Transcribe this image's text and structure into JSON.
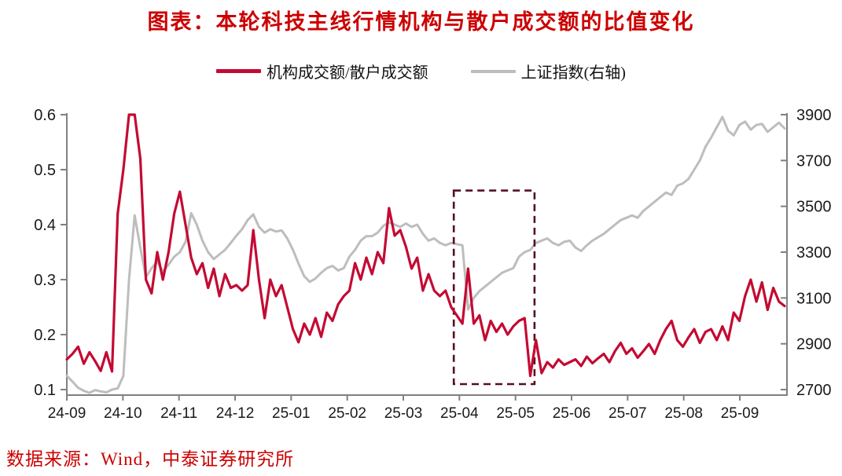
{
  "title": "图表：本轮科技主线行情机构与散户成交额的比值变化",
  "source": "数据来源：Wind，中泰证券研究所",
  "colors": {
    "text_red": "#CC0000",
    "ratio_line": "#C40A33",
    "index_line": "#BDBDBD",
    "highlight_box": "#551020",
    "axis": "#808080",
    "tick_text": "#1A1A1A"
  },
  "legend": [
    {
      "label": "机构成交额/散户成交额",
      "color": "#C40A33"
    },
    {
      "label": "上证指数(右轴)",
      "color": "#BDBDBD"
    }
  ],
  "chart_data": {
    "type": "line",
    "x_ticks": [
      "24-09",
      "24-10",
      "24-11",
      "24-12",
      "25-01",
      "25-02",
      "25-03",
      "25-04",
      "25-05",
      "25-06",
      "25-07",
      "25-08",
      "25-09"
    ],
    "yaxis_left": {
      "ticks": [
        "0.6",
        "0.5",
        "0.4",
        "0.3",
        "0.2",
        "0.1"
      ],
      "range": [
        0.1,
        0.6
      ]
    },
    "yaxis_right": {
      "ticks": [
        "3900",
        "3700",
        "3500",
        "3300",
        "3100",
        "2900",
        "2700"
      ],
      "range": [
        2700,
        3900
      ]
    },
    "grid": false,
    "legend_position": "top",
    "series": [
      {
        "name": "机构成交额/散户成交额",
        "axis": "left",
        "color": "#C40A33",
        "values": [
          0.155,
          0.165,
          0.178,
          0.147,
          0.168,
          0.152,
          0.134,
          0.168,
          0.133,
          0.42,
          0.5,
          0.6,
          0.6,
          0.52,
          0.3,
          0.275,
          0.35,
          0.3,
          0.35,
          0.42,
          0.46,
          0.4,
          0.34,
          0.31,
          0.33,
          0.285,
          0.32,
          0.27,
          0.31,
          0.285,
          0.29,
          0.28,
          0.29,
          0.39,
          0.3,
          0.23,
          0.3,
          0.27,
          0.29,
          0.25,
          0.21,
          0.186,
          0.22,
          0.2,
          0.23,
          0.196,
          0.24,
          0.225,
          0.255,
          0.27,
          0.28,
          0.33,
          0.3,
          0.34,
          0.31,
          0.35,
          0.33,
          0.43,
          0.38,
          0.39,
          0.36,
          0.32,
          0.34,
          0.28,
          0.31,
          0.28,
          0.27,
          0.28,
          0.25,
          0.235,
          0.22,
          0.32,
          0.22,
          0.235,
          0.19,
          0.225,
          0.205,
          0.22,
          0.2,
          0.215,
          0.225,
          0.23,
          0.125,
          0.19,
          0.13,
          0.15,
          0.14,
          0.155,
          0.145,
          0.15,
          0.155,
          0.143,
          0.16,
          0.148,
          0.157,
          0.165,
          0.15,
          0.17,
          0.185,
          0.165,
          0.175,
          0.158,
          0.17,
          0.183,
          0.165,
          0.19,
          0.21,
          0.225,
          0.19,
          0.178,
          0.195,
          0.21,
          0.185,
          0.205,
          0.21,
          0.19,
          0.215,
          0.19,
          0.24,
          0.225,
          0.27,
          0.3,
          0.26,
          0.295,
          0.245,
          0.285,
          0.26,
          0.252
        ]
      },
      {
        "name": "上证指数(右轴)",
        "axis": "right",
        "color": "#BDBDBD",
        "values": [
          2760,
          2735,
          2708,
          2695,
          2686,
          2698,
          2692,
          2688,
          2700,
          2705,
          2760,
          3180,
          3460,
          3320,
          3190,
          3230,
          3260,
          3215,
          3245,
          3280,
          3300,
          3345,
          3470,
          3420,
          3350,
          3300,
          3270,
          3290,
          3310,
          3340,
          3372,
          3400,
          3440,
          3465,
          3410,
          3385,
          3400,
          3390,
          3395,
          3360,
          3310,
          3250,
          3195,
          3170,
          3185,
          3210,
          3230,
          3240,
          3220,
          3230,
          3280,
          3310,
          3350,
          3370,
          3370,
          3385,
          3415,
          3430,
          3420,
          3410,
          3425,
          3410,
          3420,
          3380,
          3350,
          3360,
          3340,
          3330,
          3340,
          3335,
          3330,
          3050,
          3100,
          3130,
          3150,
          3170,
          3190,
          3210,
          3220,
          3230,
          3280,
          3300,
          3310,
          3340,
          3350,
          3360,
          3340,
          3330,
          3345,
          3350,
          3320,
          3305,
          3330,
          3350,
          3365,
          3380,
          3400,
          3420,
          3440,
          3450,
          3460,
          3450,
          3480,
          3500,
          3520,
          3540,
          3560,
          3550,
          3590,
          3600,
          3620,
          3660,
          3700,
          3760,
          3800,
          3845,
          3890,
          3830,
          3810,
          3855,
          3870,
          3835,
          3855,
          3860,
          3825,
          3845,
          3865,
          3840
        ]
      }
    ],
    "annotation_box": {
      "x0_month": 6.9,
      "x1_month": 8.34,
      "v_top": 0.462,
      "v_bottom": 0.11,
      "color": "#551020"
    }
  }
}
